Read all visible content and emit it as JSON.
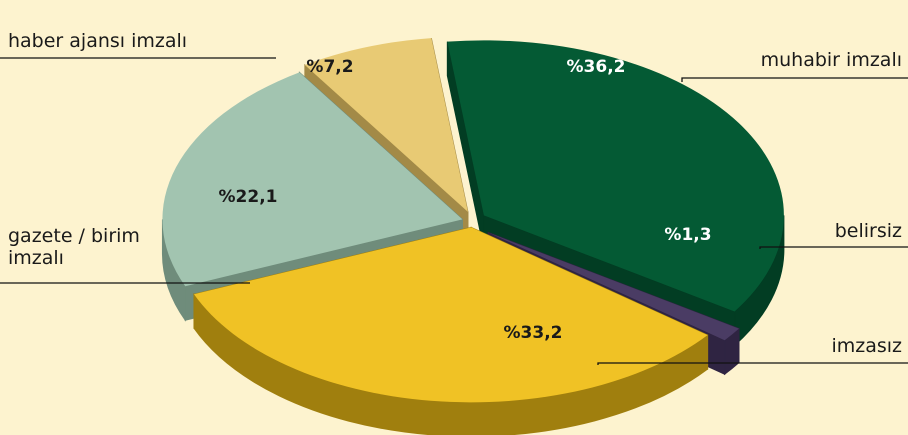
{
  "chart_data": {
    "type": "pie",
    "categories": [
      "muhabir imzalı",
      "belirsiz",
      "imzasız",
      "gazete / birim imzalı",
      "haber ajansı imzalı"
    ],
    "values": [
      36.2,
      1.3,
      33.2,
      22.1,
      7.2
    ],
    "value_labels": [
      "%36,2",
      "%1,3",
      "%33,2",
      "%22,1",
      "%7,2"
    ],
    "category_label_lines": [
      [
        "muhabir imzalı"
      ],
      [
        "belirsiz"
      ],
      [
        "imzasız"
      ],
      [
        "gazete / birim",
        "imzalı"
      ],
      [
        "haber ajansı imzalı"
      ]
    ],
    "colors": [
      "#045a34",
      "#4a3c64",
      "#f0c225",
      "#a2c4b0",
      "#e8ca74"
    ],
    "side_colors": [
      "#023d23",
      "#2f2442",
      "#a07f0e",
      "#6f8c7b",
      "#a38a47"
    ],
    "value_label_colors": [
      "#ffffff",
      "#ffffff",
      "#1a1a1a",
      "#1a1a1a",
      "#1a1a1a"
    ],
    "background": "#fdf3cf",
    "style": "3d-exploded",
    "legend": "none"
  }
}
